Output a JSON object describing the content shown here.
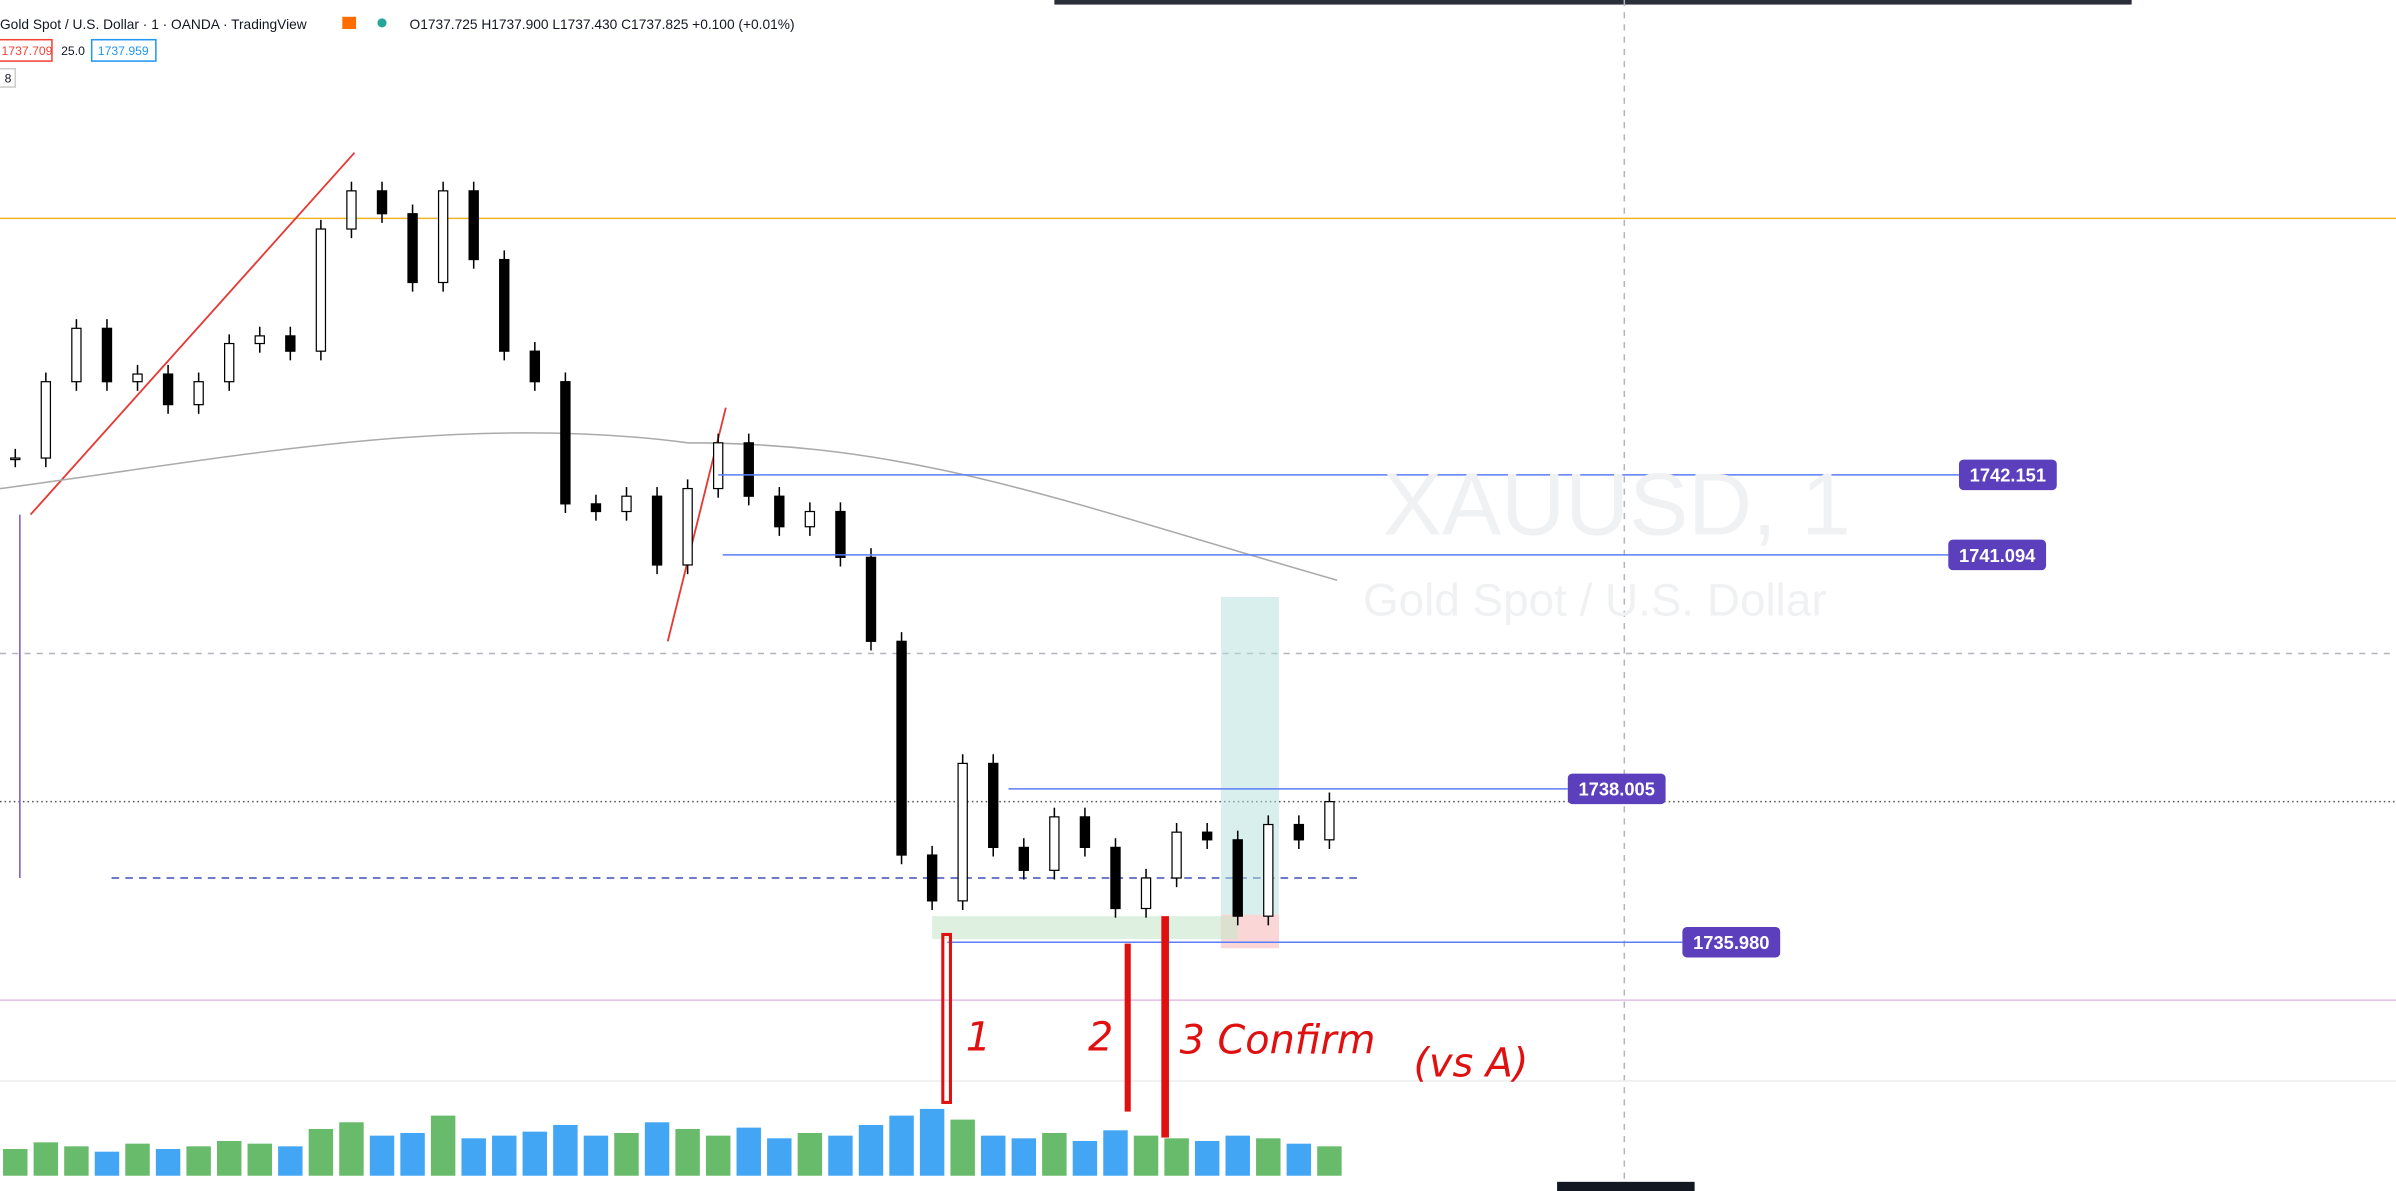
{
  "header": {
    "symbol": "Gold Spot / U.S. Dollar · 1 · OANDA · TradingView",
    "ohlc": "O1737.725 H1737.900 L1737.430 C1737.825 +0.100 (+0.01%)",
    "bid": "1737.709",
    "spread": "25.0",
    "ask": "1737.959",
    "count": "8"
  },
  "watermark": {
    "symbol": "XAUUSD, 1",
    "name": "Gold Spot / U.S. Dollar"
  },
  "chart_data": {
    "type": "candlestick",
    "ylim": [
      1732.695,
      1748.421
    ],
    "closes": [
      1742.373,
      1743.381,
      1744.086,
      1743.381,
      1743.482,
      1743.078,
      1743.381,
      1743.885,
      1743.986,
      1743.784,
      1745.397,
      1745.901,
      1745.599,
      1744.691,
      1745.901,
      1744.994,
      1743.784,
      1743.381,
      1741.768,
      1741.667,
      1741.869,
      1740.961,
      1741.97,
      1742.574,
      1741.869,
      1741.466,
      1741.667,
      1741.062,
      1739.953,
      1737.131,
      1736.526,
      1738.341,
      1737.232,
      1736.929,
      1737.635,
      1737.232,
      1736.425,
      1736.828,
      1737.433,
      1737.332,
      1736.324,
      1737.534,
      1737.332,
      1737.836
    ],
    "up_color": "#ffffff",
    "down_color": "#000000",
    "volumes": [
      20,
      25,
      22,
      18,
      24,
      20,
      22,
      26,
      24,
      22,
      35,
      40,
      30,
      32,
      45,
      28,
      30,
      33,
      38,
      30,
      32,
      40,
      35,
      30,
      36,
      28,
      32,
      30,
      38,
      45,
      50,
      42,
      30,
      28,
      32,
      26,
      34,
      30,
      28,
      26,
      30,
      28,
      24,
      22
    ],
    "volume_lim": [
      0,
      80
    ],
    "volume_up_color": "#4caf50",
    "volume_down_color": "#2196f3",
    "price_labels": [
      {
        "value": 1742.151,
        "label": "1742.151"
      },
      {
        "value": 1741.094,
        "label": "1741.094"
      },
      {
        "value": 1738.005,
        "label": "1738.005"
      },
      {
        "value": 1735.98,
        "label": "1735.980"
      }
    ],
    "label_color": "#5b3fbd"
  },
  "annotations": [
    "1",
    "2",
    "3 Confirm",
    "(vs A)"
  ]
}
